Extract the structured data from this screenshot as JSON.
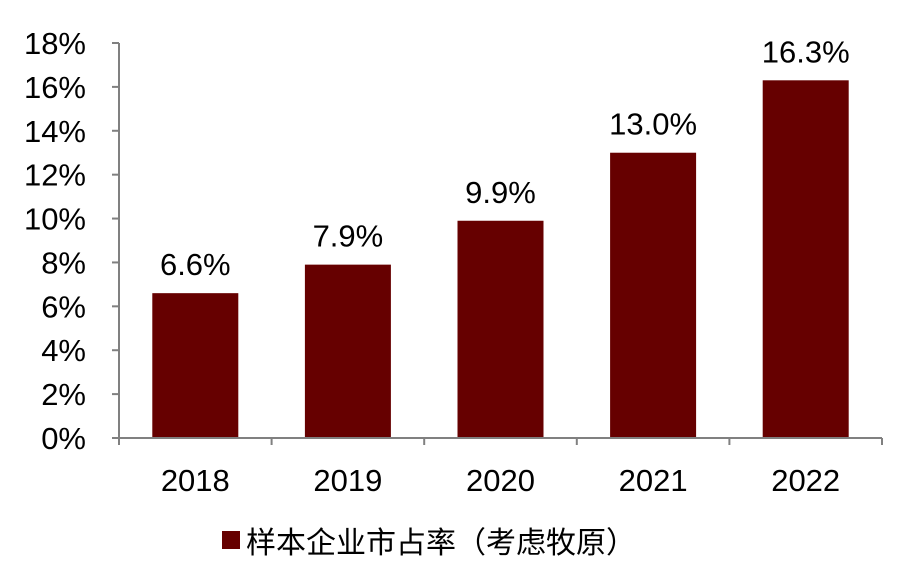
{
  "chart_data": {
    "type": "bar",
    "categories": [
      "2018",
      "2019",
      "2020",
      "2021",
      "2022"
    ],
    "series": [
      {
        "name": "样本企业市占率（考虑牧原）",
        "values": [
          6.6,
          7.9,
          9.9,
          13.0,
          16.3
        ],
        "labels": [
          "6.6%",
          "7.9%",
          "9.9%",
          "13.0%",
          "16.3%"
        ]
      }
    ],
    "y_ticks": [
      "0%",
      "2%",
      "4%",
      "6%",
      "8%",
      "10%",
      "12%",
      "14%",
      "16%",
      "18%"
    ],
    "ylim": [
      0,
      18
    ],
    "grid": false,
    "legend_position": "bottom",
    "colors": {
      "bar": "#660000",
      "axis": "#808080"
    }
  }
}
